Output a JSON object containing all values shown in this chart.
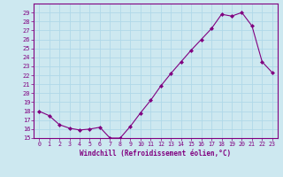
{
  "x": [
    0,
    1,
    2,
    3,
    4,
    5,
    6,
    7,
    8,
    9,
    10,
    11,
    12,
    13,
    14,
    15,
    16,
    17,
    18,
    19,
    20,
    21,
    22,
    23
  ],
  "y": [
    18.0,
    17.5,
    16.5,
    16.1,
    15.9,
    16.0,
    16.2,
    15.0,
    15.0,
    16.3,
    17.8,
    19.2,
    20.8,
    22.2,
    23.5,
    24.8,
    26.0,
    27.2,
    28.8,
    28.6,
    29.0,
    27.5,
    23.5,
    22.3
  ],
  "ylim": [
    15,
    30
  ],
  "xlim": [
    -0.5,
    23.5
  ],
  "yticks": [
    15,
    16,
    17,
    18,
    19,
    20,
    21,
    22,
    23,
    24,
    25,
    26,
    27,
    28,
    29
  ],
  "xticks": [
    0,
    1,
    2,
    3,
    4,
    5,
    6,
    7,
    8,
    9,
    10,
    11,
    12,
    13,
    14,
    15,
    16,
    17,
    18,
    19,
    20,
    21,
    22,
    23
  ],
  "xlabel": "Windchill (Refroidissement éolien,°C)",
  "line_color": "#800080",
  "marker_color": "#800080",
  "bg_color": "#cde8f0",
  "grid_color": "#b0d8e8",
  "title": ""
}
